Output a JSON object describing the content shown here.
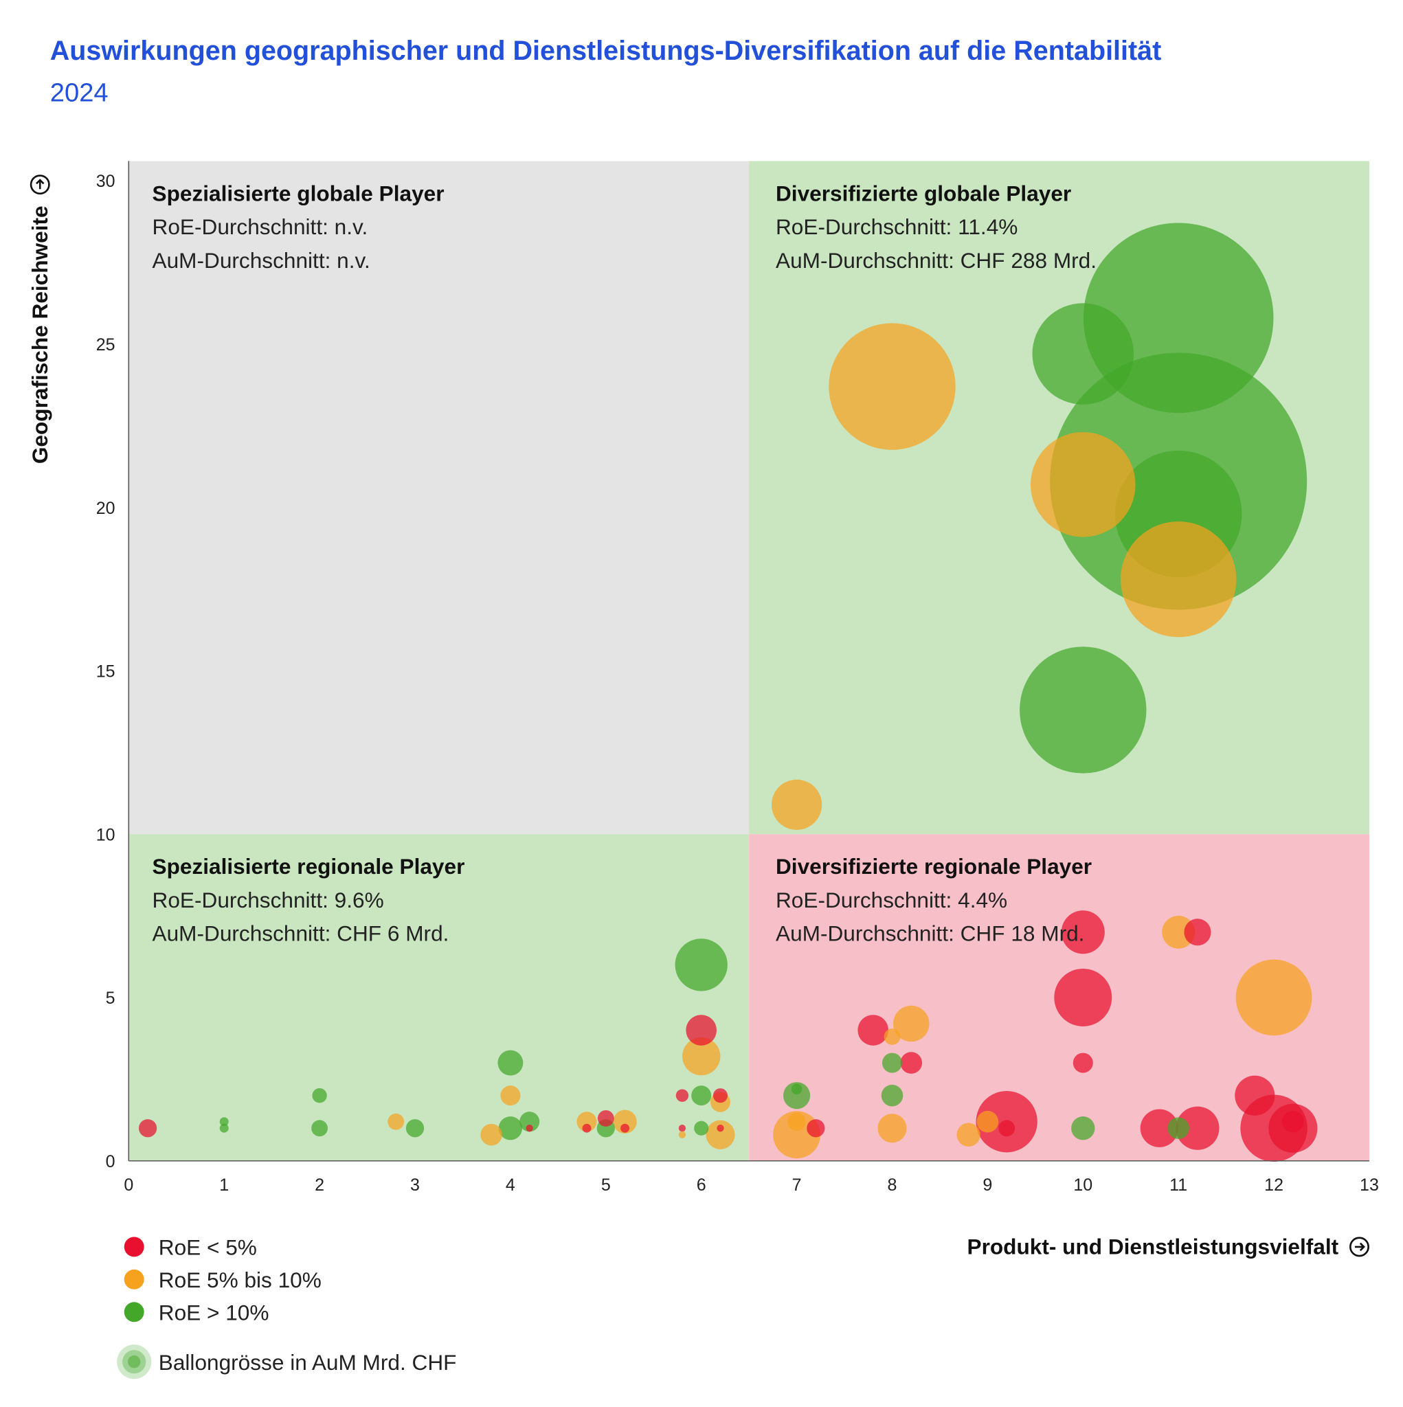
{
  "title": "Auswirkungen geographischer und Dienstleistungs-Diversifikation auf die Rentabilität",
  "subtitle": "2024",
  "colors": {
    "red": "#e8102e",
    "orange": "#f6a21e",
    "green": "#43a82a",
    "bg_grey": "#e4e4e4",
    "bg_green": "#c9e6c1",
    "bg_pink": "#f7bfc7",
    "title_blue": "#2350d8"
  },
  "quadrants": [
    {
      "title": "Spezialisierte globale Player",
      "roe": "RoE-Durchschnitt: n.v.",
      "aum": "AuM-Durchschnitt: n.v."
    },
    {
      "title": "Diversifizierte globale Player",
      "roe": "RoE-Durchschnitt: 11.4%",
      "aum": "AuM-Durchschnitt: CHF 288 Mrd."
    },
    {
      "title": "Spezialisierte regionale Player",
      "roe": "RoE-Durchschnitt: 9.6%",
      "aum": "AuM-Durchschnitt: CHF 6 Mrd."
    },
    {
      "title": "Diversifizierte regionale Player",
      "roe": "RoE-Durchschnitt: 4.4%",
      "aum": "AuM-Durchschnitt: CHF 18 Mrd."
    }
  ],
  "legend": {
    "items": [
      {
        "label": "RoE < 5%",
        "color": "red"
      },
      {
        "label": "RoE 5% bis 10%",
        "color": "orange"
      },
      {
        "label": "RoE > 10%",
        "color": "green"
      }
    ],
    "size_label": "Ballongrösse in AuM Mrd. CHF"
  },
  "chart_data": {
    "type": "bubble",
    "xlabel": "Produkt- und Dienstleistungsvielfalt",
    "ylabel": "Geografische Reichweite",
    "xlim": [
      0,
      13
    ],
    "ylim": [
      0,
      30.6
    ],
    "xticks": [
      "0",
      "1",
      "2",
      "3",
      "4",
      "5",
      "6",
      "7",
      "8",
      "9",
      "10",
      "11",
      "12",
      "13"
    ],
    "yticks": [
      "0",
      "5",
      "10",
      "15",
      "20",
      "25",
      "30"
    ],
    "quadrant_split": {
      "x": 6.5,
      "y": 10
    },
    "points": [
      {
        "x": 11,
        "y": 20.8,
        "aum": 913,
        "roe": "green"
      },
      {
        "x": 11,
        "y": 25.8,
        "aum": 499,
        "roe": "green"
      },
      {
        "x": 8,
        "y": 23.7,
        "aum": 222,
        "roe": "orange"
      },
      {
        "x": 10,
        "y": 24.7,
        "aum": 142,
        "roe": "green"
      },
      {
        "x": 10,
        "y": 20.7,
        "aum": 152,
        "roe": "orange"
      },
      {
        "x": 11,
        "y": 19.8,
        "aum": 222,
        "roe": "green"
      },
      {
        "x": 11,
        "y": 17.8,
        "aum": 185,
        "roe": "orange"
      },
      {
        "x": 10,
        "y": 13.8,
        "aum": 222,
        "roe": "green"
      },
      {
        "x": 7,
        "y": 10.9,
        "aum": 35,
        "roe": "orange"
      },
      {
        "x": 0.2,
        "y": 1.0,
        "aum": 4.5,
        "roe": "red"
      },
      {
        "x": 1.0,
        "y": 1.2,
        "aum": 1.1,
        "roe": "green"
      },
      {
        "x": 1.0,
        "y": 1.0,
        "aum": 1.1,
        "roe": "green"
      },
      {
        "x": 2.0,
        "y": 2.0,
        "aum": 3,
        "roe": "green"
      },
      {
        "x": 2.0,
        "y": 1.0,
        "aum": 3.7,
        "roe": "green"
      },
      {
        "x": 2.8,
        "y": 1.2,
        "aum": 3.7,
        "roe": "orange"
      },
      {
        "x": 3.0,
        "y": 1.0,
        "aum": 4.5,
        "roe": "green"
      },
      {
        "x": 3.8,
        "y": 0.8,
        "aum": 6.5,
        "roe": "orange"
      },
      {
        "x": 4.0,
        "y": 1.0,
        "aum": 7.7,
        "roe": "green"
      },
      {
        "x": 4.2,
        "y": 1.2,
        "aum": 5.5,
        "roe": "green"
      },
      {
        "x": 4.2,
        "y": 1.0,
        "aum": 0.7,
        "roe": "red"
      },
      {
        "x": 4.0,
        "y": 3.0,
        "aum": 8.9,
        "roe": "green"
      },
      {
        "x": 4.0,
        "y": 2.0,
        "aum": 5.5,
        "roe": "orange"
      },
      {
        "x": 4.8,
        "y": 1.2,
        "aum": 5.5,
        "roe": "orange"
      },
      {
        "x": 4.8,
        "y": 1.0,
        "aum": 1.1,
        "roe": "red"
      },
      {
        "x": 5.0,
        "y": 1.3,
        "aum": 3.7,
        "roe": "red"
      },
      {
        "x": 5.0,
        "y": 1.0,
        "aum": 4.5,
        "roe": "green"
      },
      {
        "x": 5.2,
        "y": 1.2,
        "aum": 7.7,
        "roe": "orange"
      },
      {
        "x": 5.2,
        "y": 1.0,
        "aum": 1.1,
        "roe": "red"
      },
      {
        "x": 5.8,
        "y": 2.0,
        "aum": 2.2,
        "roe": "red"
      },
      {
        "x": 6.0,
        "y": 2.0,
        "aum": 5.5,
        "roe": "green"
      },
      {
        "x": 6.2,
        "y": 2.0,
        "aum": 2.9,
        "roe": "red"
      },
      {
        "x": 6.2,
        "y": 1.8,
        "aum": 5.5,
        "roe": "orange"
      },
      {
        "x": 5.8,
        "y": 1.0,
        "aum": 0.7,
        "roe": "red"
      },
      {
        "x": 5.8,
        "y": 0.8,
        "aum": 0.7,
        "roe": "orange"
      },
      {
        "x": 6.0,
        "y": 1.0,
        "aum": 2.9,
        "roe": "green"
      },
      {
        "x": 6.2,
        "y": 0.8,
        "aum": 11.6,
        "roe": "orange"
      },
      {
        "x": 6.2,
        "y": 1.0,
        "aum": 0.7,
        "roe": "red"
      },
      {
        "x": 6.0,
        "y": 6.0,
        "aum": 38,
        "roe": "green"
      },
      {
        "x": 6.0,
        "y": 4.0,
        "aum": 13,
        "roe": "red"
      },
      {
        "x": 6.0,
        "y": 3.2,
        "aum": 20,
        "roe": "orange"
      },
      {
        "x": 7.0,
        "y": 0.8,
        "aum": 31,
        "roe": "orange"
      },
      {
        "x": 7.0,
        "y": 1.2,
        "aum": 4.5,
        "roe": "orange"
      },
      {
        "x": 7.2,
        "y": 1.0,
        "aum": 4.5,
        "roe": "red"
      },
      {
        "x": 7.0,
        "y": 2.0,
        "aum": 10,
        "roe": "green"
      },
      {
        "x": 7.0,
        "y": 2.2,
        "aum": 1.6,
        "roe": "green"
      },
      {
        "x": 7.8,
        "y": 4.0,
        "aum": 13,
        "roe": "red"
      },
      {
        "x": 8.2,
        "y": 4.2,
        "aum": 18,
        "roe": "orange"
      },
      {
        "x": 8.0,
        "y": 3.8,
        "aum": 3.7,
        "roe": "orange"
      },
      {
        "x": 8.0,
        "y": 3.0,
        "aum": 5.5,
        "roe": "green"
      },
      {
        "x": 8.2,
        "y": 3.0,
        "aum": 6.5,
        "roe": "red"
      },
      {
        "x": 8.0,
        "y": 2.0,
        "aum": 6.5,
        "roe": "green"
      },
      {
        "x": 8.0,
        "y": 1.0,
        "aum": 11.6,
        "roe": "orange"
      },
      {
        "x": 8.8,
        "y": 0.8,
        "aum": 7.7,
        "roe": "orange"
      },
      {
        "x": 9.0,
        "y": 1.2,
        "aum": 6.5,
        "roe": "orange"
      },
      {
        "x": 9.2,
        "y": 1.2,
        "aum": 52,
        "roe": "red"
      },
      {
        "x": 9.2,
        "y": 1.0,
        "aum": 3.7,
        "roe": "red"
      },
      {
        "x": 10.0,
        "y": 7.0,
        "aum": 26,
        "roe": "red"
      },
      {
        "x": 10.0,
        "y": 5.0,
        "aum": 46,
        "roe": "red"
      },
      {
        "x": 10.0,
        "y": 3.0,
        "aum": 5.5,
        "roe": "red"
      },
      {
        "x": 10.0,
        "y": 1.0,
        "aum": 7.7,
        "roe": "green"
      },
      {
        "x": 11.0,
        "y": 7.0,
        "aum": 15,
        "roe": "orange"
      },
      {
        "x": 11.2,
        "y": 7.0,
        "aum": 10,
        "roe": "red"
      },
      {
        "x": 12.0,
        "y": 5.0,
        "aum": 80,
        "roe": "orange"
      },
      {
        "x": 10.8,
        "y": 1.0,
        "aum": 20,
        "roe": "red"
      },
      {
        "x": 11.2,
        "y": 1.0,
        "aum": 26,
        "roe": "red"
      },
      {
        "x": 11.0,
        "y": 1.0,
        "aum": 6.5,
        "roe": "green"
      },
      {
        "x": 11.8,
        "y": 2.0,
        "aum": 22,
        "roe": "red"
      },
      {
        "x": 12.0,
        "y": 1.0,
        "aum": 62,
        "roe": "red"
      },
      {
        "x": 12.2,
        "y": 1.0,
        "aum": 33,
        "roe": "red"
      },
      {
        "x": 12.2,
        "y": 1.2,
        "aum": 6.5,
        "roe": "red"
      }
    ]
  }
}
